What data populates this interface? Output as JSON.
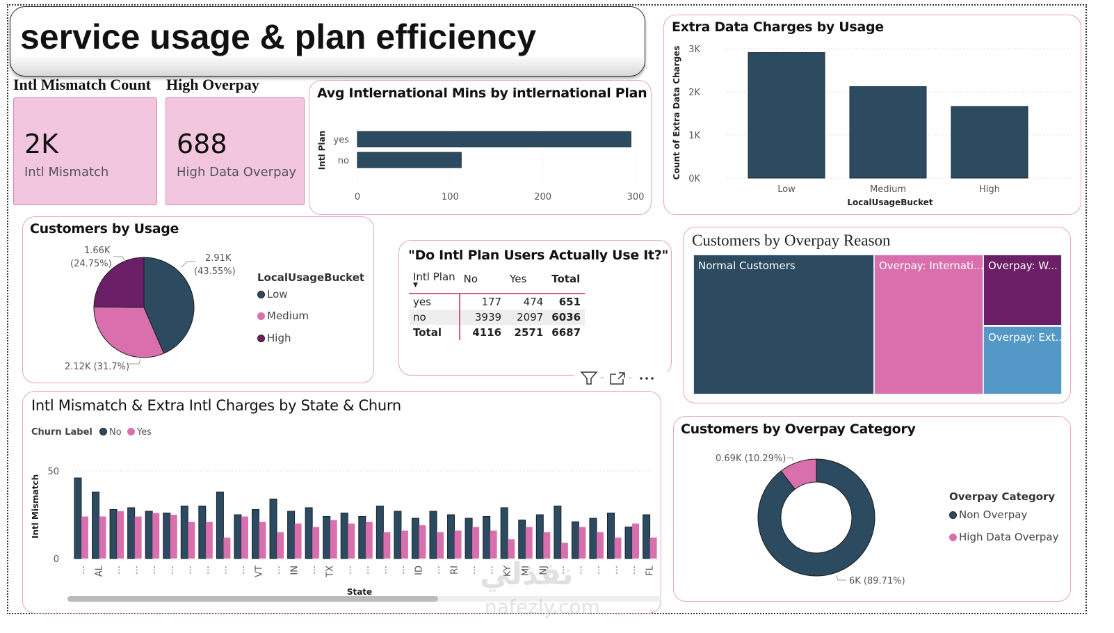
{
  "page": {
    "title": "service usage & plan efficiency"
  },
  "kpis": [
    {
      "header": "Intl Mismatch Count",
      "value": "2K",
      "label": "Intl Mismatch"
    },
    {
      "header": "High Overpay",
      "value": "688",
      "label": "High Data Overpay"
    }
  ],
  "colors": {
    "navy": "#2c4a60",
    "pink": "#d970ad",
    "purple": "#6b1f66",
    "blue": "#5398c6",
    "border": "#e3a6c2"
  },
  "intl_mins_chart": {
    "title": "Avg Intlernational Mins by intlernational Plan"
  },
  "extra_data_chart": {
    "title": "Extra Data Charges by Usage"
  },
  "usage_pie": {
    "title": "Customers by Usage"
  },
  "matrix": {
    "title": "\"Do Intl Plan Users Actually Use It?\"",
    "headers": [
      "Intl Plan",
      "No",
      "Yes",
      "Total"
    ],
    "rows": [
      {
        "label": "yes",
        "no": "177",
        "yes": "474",
        "total": "651"
      },
      {
        "label": "no",
        "no": "3939",
        "yes": "2097",
        "total": "6036"
      },
      {
        "label": "Total",
        "no": "4116",
        "yes": "2571",
        "total": "6687"
      }
    ],
    "icons": [
      "filter-icon",
      "focus-mode-icon",
      "more-options-icon"
    ]
  },
  "treemap": {
    "title": "Customers by Overpay Reason",
    "tiles": [
      {
        "label": "Normal Customers",
        "color": "#2c4a60"
      },
      {
        "label": "Overpay: Internati...",
        "color": "#d970ad"
      },
      {
        "label": "Overpay: W...",
        "color": "#6b1f66"
      },
      {
        "label": "Overpay: Ext...",
        "color": "#5398c6"
      }
    ]
  },
  "state_chart": {
    "title": "Intl Mismatch & Extra Intl Charges by State & Churn",
    "legend_title": "Churn Label"
  },
  "donut": {
    "title": "Customers by Overpay Category"
  },
  "watermark": {
    "arabic": "نفذلي",
    "latin": "nafezly.com"
  },
  "chart_data": [
    {
      "id": "intl_mins",
      "type": "bar",
      "orientation": "horizontal",
      "title": "Avg Intlernational Mins by intlernational Plan",
      "categories": [
        "yes",
        "no"
      ],
      "values": [
        295,
        112
      ],
      "ylabel": "Intl Plan",
      "xlabel": "",
      "xlim": [
        0,
        300
      ],
      "xticks": [
        "0",
        "100",
        "200",
        "300"
      ],
      "grid": true
    },
    {
      "id": "extra_data",
      "type": "bar",
      "title": "Extra Data Charges by Usage",
      "categories": [
        "Low",
        "Medium",
        "High"
      ],
      "values": [
        2910,
        2120,
        1660
      ],
      "xlabel": "LocalUsageBucket",
      "ylabel": "Count of Extra Data Charges",
      "ylim": [
        0,
        3000
      ],
      "yticks": [
        "0K",
        "1K",
        "2K",
        "3K"
      ],
      "grid": true
    },
    {
      "id": "usage_pie",
      "type": "pie",
      "title": "Customers by Usage",
      "legend_title": "LocalUsageBucket",
      "legend_position": "right",
      "slices": [
        {
          "label": "Low",
          "value": 2910,
          "display": "2.91K",
          "percent": "(43.55%)"
        },
        {
          "label": "Medium",
          "value": 2120,
          "display": "2.12K",
          "percent": "(31.7%)"
        },
        {
          "label": "High",
          "value": 1660,
          "display": "1.66K",
          "percent": "(24.75%)"
        }
      ]
    },
    {
      "id": "state_churn",
      "type": "bar",
      "title": "Intl Mismatch & Extra Intl Charges by State & Churn",
      "xlabel": "State",
      "ylabel": "Intl Mismatch",
      "ylim": [
        0,
        50
      ],
      "yticks": [
        "0",
        "50"
      ],
      "legend_title": "Churn Label",
      "legend_position": "top-left",
      "categories": [
        "…",
        "AL",
        "…",
        "…",
        "…",
        "…",
        "…",
        "…",
        "…",
        "…",
        "VT",
        "…",
        "IN",
        "…",
        "TX",
        "…",
        "…",
        "…",
        "…",
        "ID",
        "…",
        "RI",
        "…",
        "…",
        "KY",
        "MI",
        "NJ",
        "…",
        "…",
        "…",
        "…",
        "…",
        "FL"
      ],
      "series": [
        {
          "name": "No",
          "values": [
            46,
            38,
            28,
            29,
            27,
            26,
            30,
            30,
            38,
            25,
            28,
            34,
            27,
            29,
            24,
            26,
            24,
            30,
            27,
            23,
            27,
            25,
            23,
            24,
            29,
            22,
            25,
            30,
            21,
            23,
            26,
            18,
            25
          ]
        },
        {
          "name": "Yes",
          "values": [
            24,
            24,
            27,
            24,
            26,
            25,
            21,
            21,
            12,
            24,
            21,
            15,
            20,
            18,
            22,
            20,
            21,
            15,
            16,
            19,
            15,
            16,
            18,
            16,
            11,
            18,
            15,
            9,
            18,
            15,
            12,
            20,
            12
          ]
        }
      ],
      "scrollbar_fraction_visible": 0.6
    },
    {
      "id": "overpay_donut",
      "type": "pie",
      "donut": true,
      "title": "Customers by Overpay Category",
      "legend_title": "Overpay Category",
      "legend_position": "right",
      "slices": [
        {
          "label": "Non Overpay",
          "value": 6000,
          "display": "6K",
          "percent": "(89.71%)"
        },
        {
          "label": "High Data Overpay",
          "value": 690,
          "display": "0.69K",
          "percent": "(10.29%)"
        }
      ]
    }
  ]
}
